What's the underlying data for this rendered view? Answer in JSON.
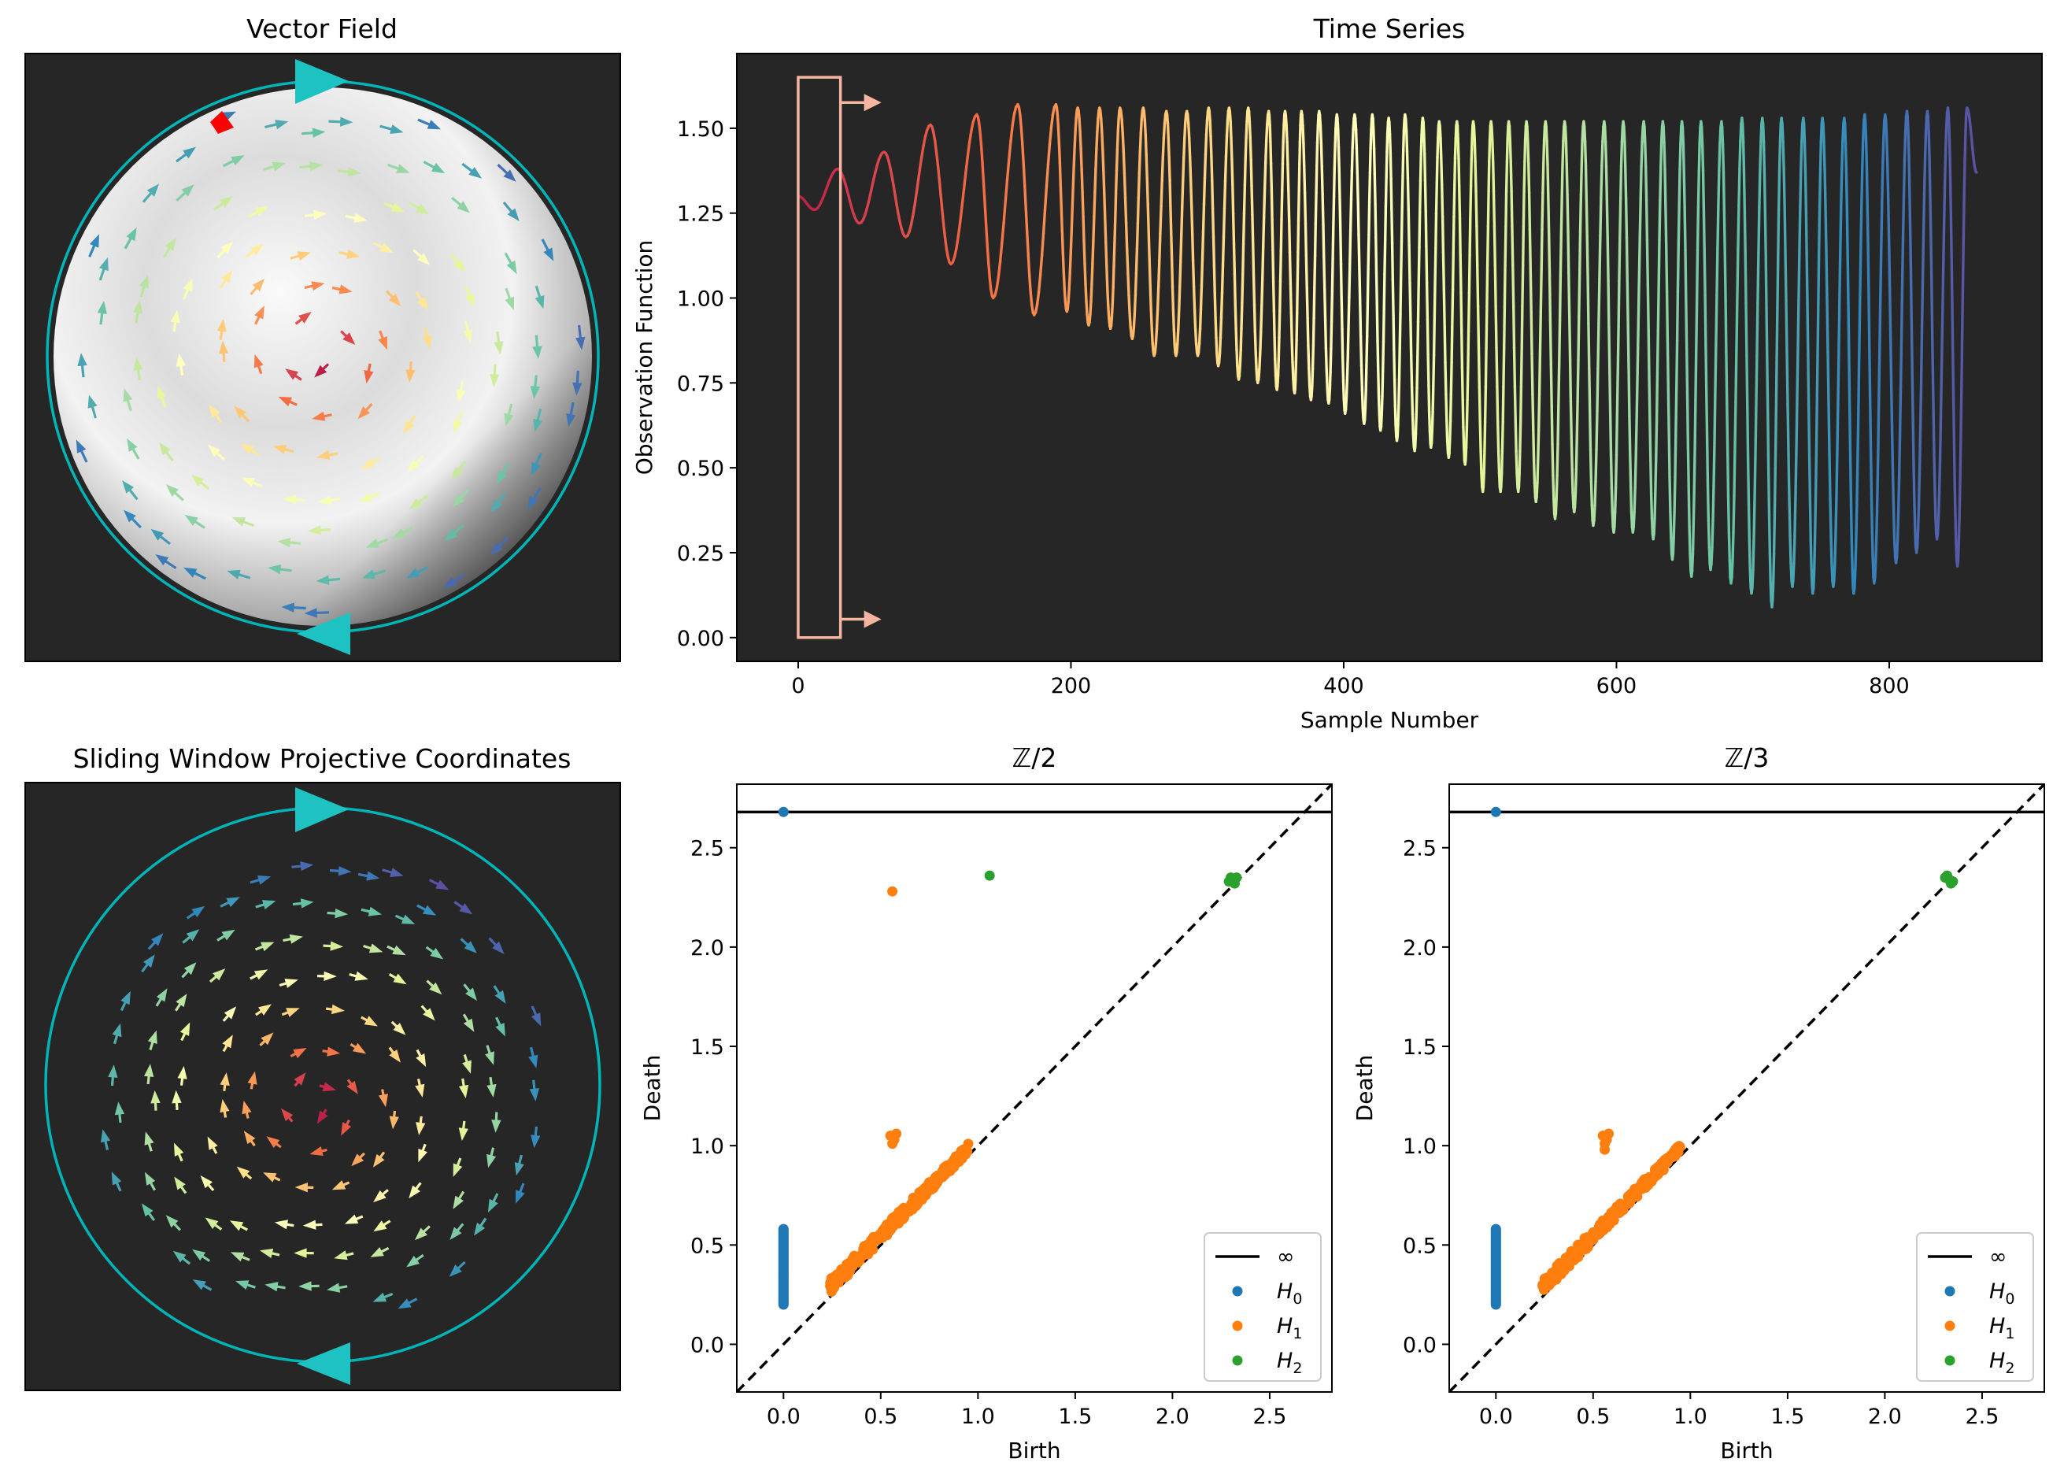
{
  "panels": {
    "vector_field": {
      "title": "Vector Field"
    },
    "sliding_window": {
      "title": "Sliding Window Projective Coordinates"
    }
  },
  "colors": {
    "panel_bg": "#262626",
    "circle": "#00b5b8",
    "marker": "#1fc2c2",
    "window_box": "#f6b5a0",
    "red_marker": "#ff0000",
    "h0": "#1f77b4",
    "h1": "#ff7f0e",
    "h2": "#2ca02c",
    "inf_line": "#000000",
    "diagonal": "#000000"
  },
  "chart_data": [
    {
      "id": "time_series",
      "type": "line",
      "title": "Time Series",
      "xlabel": "Sample Number",
      "ylabel": "Observation Function",
      "xlim": [
        -45,
        912
      ],
      "ylim": [
        -0.07,
        1.72
      ],
      "xticks": [
        "0",
        "200",
        "400",
        "600",
        "800"
      ],
      "yticks": [
        "0.00",
        "0.25",
        "0.50",
        "0.75",
        "1.00",
        "1.25",
        "1.50"
      ],
      "xtick_values": [
        0,
        200,
        400,
        600,
        800
      ],
      "ytick_values": [
        0,
        0.25,
        0.5,
        0.75,
        1.0,
        1.25,
        1.5
      ],
      "colormap": "Spectral",
      "n_samples": 865,
      "window": {
        "x0": 0,
        "x1": 31,
        "y0": 0.0,
        "y1": 1.65
      },
      "peaks": [
        [
          0,
          1.3
        ],
        [
          29,
          1.38
        ],
        [
          63,
          1.43
        ],
        [
          97,
          1.51
        ],
        [
          131,
          1.54
        ],
        [
          161,
          1.57
        ],
        [
          189,
          1.57
        ],
        [
          205,
          1.56
        ],
        [
          221,
          1.56
        ],
        [
          236,
          1.56
        ],
        [
          253,
          1.56
        ],
        [
          270,
          1.55
        ],
        [
          285,
          1.55
        ],
        [
          301,
          1.56
        ],
        [
          316,
          1.56
        ],
        [
          330,
          1.56
        ],
        [
          345,
          1.55
        ],
        [
          357,
          1.55
        ],
        [
          369,
          1.55
        ],
        [
          382,
          1.55
        ],
        [
          395,
          1.54
        ],
        [
          408,
          1.54
        ],
        [
          421,
          1.54
        ],
        [
          433,
          1.53
        ],
        [
          445,
          1.54
        ],
        [
          458,
          1.53
        ],
        [
          470,
          1.52
        ],
        [
          483,
          1.52
        ],
        [
          495,
          1.52
        ],
        [
          508,
          1.52
        ],
        [
          521,
          1.52
        ],
        [
          534,
          1.52
        ],
        [
          548,
          1.52
        ],
        [
          562,
          1.52
        ],
        [
          576,
          1.52
        ],
        [
          591,
          1.52
        ],
        [
          605,
          1.52
        ],
        [
          620,
          1.52
        ],
        [
          634,
          1.52
        ],
        [
          648,
          1.52
        ],
        [
          662,
          1.52
        ],
        [
          677,
          1.52
        ],
        [
          692,
          1.53
        ],
        [
          707,
          1.53
        ],
        [
          721,
          1.53
        ],
        [
          737,
          1.53
        ],
        [
          751,
          1.53
        ],
        [
          767,
          1.53
        ],
        [
          782,
          1.54
        ],
        [
          797,
          1.54
        ],
        [
          813,
          1.55
        ],
        [
          828,
          1.55
        ],
        [
          843,
          1.56
        ],
        [
          857,
          1.56
        ]
      ],
      "troughs": [
        [
          12,
          1.26
        ],
        [
          45,
          1.22
        ],
        [
          79,
          1.18
        ],
        [
          112,
          1.1
        ],
        [
          143,
          1.0
        ],
        [
          173,
          0.95
        ],
        [
          197,
          0.96
        ],
        [
          213,
          0.92
        ],
        [
          229,
          0.91
        ],
        [
          245,
          0.88
        ],
        [
          261,
          0.83
        ],
        [
          277,
          0.83
        ],
        [
          293,
          0.83
        ],
        [
          308,
          0.8
        ],
        [
          323,
          0.76
        ],
        [
          337,
          0.75
        ],
        [
          351,
          0.73
        ],
        [
          364,
          0.72
        ],
        [
          376,
          0.7
        ],
        [
          389,
          0.69
        ],
        [
          401,
          0.66
        ],
        [
          415,
          0.63
        ],
        [
          427,
          0.61
        ],
        [
          439,
          0.58
        ],
        [
          452,
          0.55
        ],
        [
          464,
          0.56
        ],
        [
          477,
          0.53
        ],
        [
          489,
          0.51
        ],
        [
          502,
          0.43
        ],
        [
          515,
          0.43
        ],
        [
          528,
          0.43
        ],
        [
          541,
          0.4
        ],
        [
          555,
          0.35
        ],
        [
          569,
          0.37
        ],
        [
          583,
          0.33
        ],
        [
          598,
          0.31
        ],
        [
          612,
          0.31
        ],
        [
          627,
          0.29
        ],
        [
          641,
          0.23
        ],
        [
          655,
          0.18
        ],
        [
          669,
          0.2
        ],
        [
          684,
          0.16
        ],
        [
          699,
          0.13
        ],
        [
          714,
          0.09
        ],
        [
          729,
          0.15
        ],
        [
          744,
          0.13
        ],
        [
          759,
          0.15
        ],
        [
          774,
          0.13
        ],
        [
          789,
          0.16
        ],
        [
          805,
          0.22
        ],
        [
          820,
          0.25
        ],
        [
          835,
          0.29
        ],
        [
          850,
          0.21
        ],
        [
          864,
          1.37
        ]
      ]
    },
    {
      "id": "diagram_z2",
      "type": "scatter",
      "title": "ℤ/2",
      "xlabel": "Birth",
      "ylabel": "Death",
      "xlim": [
        -0.24,
        2.82
      ],
      "ylim": [
        -0.24,
        2.82
      ],
      "xticks": [
        "0.0",
        "0.5",
        "1.0",
        "1.5",
        "2.0",
        "2.5"
      ],
      "yticks": [
        "0.0",
        "0.5",
        "1.0",
        "1.5",
        "2.0",
        "2.5"
      ],
      "tick_values": [
        0,
        0.5,
        1.0,
        1.5,
        2.0,
        2.5
      ],
      "infinity_y": 2.68,
      "legend": {
        "position": "lower-right",
        "entries": [
          "∞",
          "H",
          "H",
          "H"
        ],
        "subscripts": [
          "0",
          "1",
          "2"
        ]
      },
      "h0": {
        "birth": 0.0,
        "death_range": [
          0.2,
          0.58
        ],
        "infinite_point": [
          0.0,
          2.68
        ]
      },
      "h1_outliers": [
        [
          0.56,
          2.28
        ],
        [
          0.55,
          1.05
        ],
        [
          0.57,
          1.03
        ],
        [
          0.58,
          1.06
        ],
        [
          0.56,
          1.01
        ]
      ],
      "h1_cloud": {
        "x_range": [
          0.24,
          0.95
        ],
        "spread": 0.07
      },
      "h2": [
        [
          1.06,
          2.36
        ],
        [
          2.29,
          2.33
        ],
        [
          2.31,
          2.34
        ],
        [
          2.33,
          2.35
        ],
        [
          2.32,
          2.32
        ],
        [
          2.3,
          2.35
        ]
      ]
    },
    {
      "id": "diagram_z3",
      "type": "scatter",
      "title": "ℤ/3",
      "xlabel": "Birth",
      "ylabel": "Death",
      "xlim": [
        -0.24,
        2.82
      ],
      "ylim": [
        -0.24,
        2.82
      ],
      "xticks": [
        "0.0",
        "0.5",
        "1.0",
        "1.5",
        "2.0",
        "2.5"
      ],
      "yticks": [
        "0.0",
        "0.5",
        "1.0",
        "1.5",
        "2.0",
        "2.5"
      ],
      "tick_values": [
        0,
        0.5,
        1.0,
        1.5,
        2.0,
        2.5
      ],
      "infinity_y": 2.68,
      "legend": {
        "position": "lower-right",
        "entries": [
          "∞",
          "H",
          "H",
          "H"
        ],
        "subscripts": [
          "0",
          "1",
          "2"
        ]
      },
      "h0": {
        "birth": 0.0,
        "death_range": [
          0.2,
          0.58
        ],
        "infinite_point": [
          0.0,
          2.68
        ]
      },
      "h1_outliers": [
        [
          0.55,
          1.05
        ],
        [
          0.57,
          1.03
        ],
        [
          0.58,
          1.06
        ],
        [
          0.56,
          1.01
        ],
        [
          0.56,
          0.98
        ]
      ],
      "h1_cloud": {
        "x_range": [
          0.24,
          0.95
        ],
        "spread": 0.07
      },
      "h2": [
        [
          2.31,
          2.35
        ],
        [
          2.33,
          2.34
        ],
        [
          2.35,
          2.33
        ],
        [
          2.32,
          2.36
        ],
        [
          2.34,
          2.32
        ]
      ]
    }
  ]
}
